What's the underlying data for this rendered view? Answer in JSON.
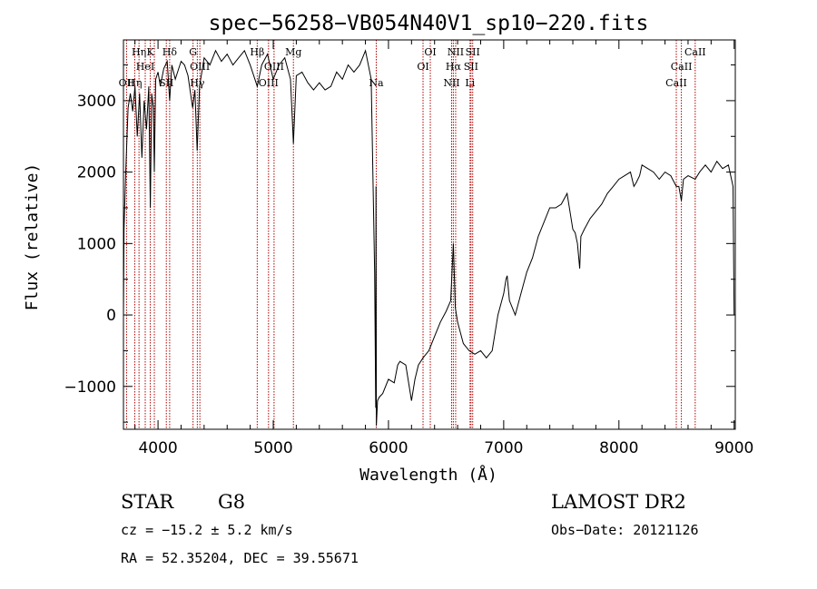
{
  "chart_data": {
    "type": "line",
    "title": "spec−56258−VB054N40V1_sp10−220.fits",
    "xlabel": "Wavelength (Å)",
    "ylabel": "Flux (relative)",
    "xlim": [
      3700,
      9010
    ],
    "ylim": [
      -1600,
      3850
    ],
    "x_ticks": [
      4000,
      5000,
      6000,
      7000,
      8000,
      9000
    ],
    "x_tick_labels": [
      "4000",
      "5000",
      "6000",
      "7000",
      "8000",
      "9000"
    ],
    "y_ticks": [
      -1000,
      0,
      1000,
      2000,
      3000
    ],
    "y_tick_labels": [
      "−1000",
      "0",
      "1000",
      "2000",
      "3000"
    ],
    "grid": false,
    "line_color": "#000000",
    "marker_color": "#b00000",
    "series": [
      {
        "x": [
          3700,
          3705,
          3720,
          3740,
          3760,
          3780,
          3800,
          3820,
          3840,
          3860,
          3880,
          3900,
          3920,
          3933,
          3945,
          3960,
          3968,
          3980,
          4000,
          4020,
          4050,
          4080,
          4101,
          4120,
          4150,
          4180,
          4200,
          4230,
          4260,
          4300,
          4320,
          4340,
          4360,
          4400,
          4450,
          4500,
          4550,
          4600,
          4650,
          4700,
          4750,
          4800,
          4861,
          4900,
          4950,
          5000,
          5050,
          5100,
          5150,
          5175,
          5200,
          5250,
          5300,
          5350,
          5400,
          5450,
          5500,
          5550,
          5600,
          5650,
          5700,
          5750,
          5800,
          5850,
          5880,
          5889,
          5892,
          5895,
          5905,
          5920,
          5950,
          6000,
          6050,
          6080,
          6100,
          6150,
          6200,
          6230,
          6260,
          6300,
          6350,
          6400,
          6450,
          6500,
          6540,
          6563,
          6580,
          6600,
          6650,
          6700,
          6750,
          6800,
          6850,
          6900,
          6950,
          7000,
          7020,
          7030,
          7050,
          7100,
          7150,
          7200,
          7250,
          7300,
          7350,
          7400,
          7450,
          7500,
          7550,
          7580,
          7600,
          7620,
          7640,
          7660,
          7670,
          7700,
          7750,
          7800,
          7850,
          7900,
          7950,
          8000,
          8050,
          8100,
          8130,
          8150,
          8180,
          8200,
          8250,
          8300,
          8350,
          8400,
          8450,
          8498,
          8520,
          8542,
          8560,
          8600,
          8662,
          8700,
          8750,
          8800,
          8850,
          8900,
          8950,
          8990,
          9000
        ],
        "y": [
          0,
          1200,
          2000,
          2900,
          3100,
          2850,
          3200,
          2500,
          3100,
          2200,
          3000,
          2600,
          3200,
          1500,
          3100,
          2900,
          2000,
          3300,
          3400,
          3200,
          3450,
          3550,
          3000,
          3500,
          3300,
          3450,
          3550,
          3500,
          3350,
          2900,
          3150,
          2300,
          3200,
          3600,
          3500,
          3700,
          3550,
          3650,
          3500,
          3600,
          3700,
          3500,
          3200,
          3500,
          3650,
          3300,
          3500,
          3600,
          3300,
          2400,
          3350,
          3400,
          3250,
          3150,
          3250,
          3150,
          3200,
          3400,
          3300,
          3500,
          3400,
          3500,
          3700,
          3300,
          600,
          -1300,
          1800,
          -1550,
          -1200,
          -1150,
          -1100,
          -900,
          -950,
          -700,
          -650,
          -700,
          -1200,
          -900,
          -700,
          -600,
          -500,
          -300,
          -100,
          50,
          200,
          1000,
          100,
          -100,
          -400,
          -500,
          -550,
          -500,
          -600,
          -500,
          0,
          300,
          500,
          550,
          200,
          0,
          300,
          600,
          800,
          1100,
          1300,
          1500,
          1500,
          1550,
          1700,
          1400,
          1200,
          1150,
          1000,
          650,
          1100,
          1200,
          1350,
          1450,
          1550,
          1700,
          1800,
          1900,
          1950,
          2000,
          1800,
          1850,
          1950,
          2100,
          2050,
          2000,
          1900,
          2000,
          1950,
          1800,
          1800,
          1600,
          1900,
          1950,
          1900,
          2000,
          2100,
          2000,
          2150,
          2050,
          2100,
          1800,
          0
        ]
      }
    ],
    "line_markers": [
      {
        "wavelength": 3727,
        "label": "OII",
        "row": 3
      },
      {
        "wavelength": 3798,
        "label": "Hη",
        "row": 3
      },
      {
        "wavelength": 3835,
        "label": "Hη",
        "row": 1
      },
      {
        "wavelength": 3889,
        "label": "HeI",
        "row": 2
      },
      {
        "wavelength": 3933,
        "label": "K",
        "row": 1
      },
      {
        "wavelength": 3968,
        "label": "",
        "row": 1
      },
      {
        "wavelength": 4072,
        "label": "SII",
        "row": 3
      },
      {
        "wavelength": 4101,
        "label": "Hδ",
        "row": 1
      },
      {
        "wavelength": 4304,
        "label": "G",
        "row": 1
      },
      {
        "wavelength": 4341,
        "label": "Hγ",
        "row": 3
      },
      {
        "wavelength": 4363,
        "label": "OIII",
        "row": 2
      },
      {
        "wavelength": 4861,
        "label": "Hβ",
        "row": 1
      },
      {
        "wavelength": 4959,
        "label": "OIII",
        "row": 3
      },
      {
        "wavelength": 5007,
        "label": "OIII",
        "row": 2
      },
      {
        "wavelength": 5175,
        "label": "Mg",
        "row": 1
      },
      {
        "wavelength": 5894,
        "label": "Na",
        "row": 3
      },
      {
        "wavelength": 6300,
        "label": "OI",
        "row": 2
      },
      {
        "wavelength": 6363,
        "label": "OI",
        "row": 1
      },
      {
        "wavelength": 6548,
        "label": "NII",
        "row": 3
      },
      {
        "wavelength": 6563,
        "label": "Hα",
        "row": 2
      },
      {
        "wavelength": 6583,
        "label": "NII",
        "row": 1
      },
      {
        "wavelength": 6708,
        "label": "Li",
        "row": 3
      },
      {
        "wavelength": 6716,
        "label": "SII",
        "row": 2
      },
      {
        "wavelength": 6731,
        "label": "SII",
        "row": 1
      },
      {
        "wavelength": 8498,
        "label": "CaII",
        "row": 3
      },
      {
        "wavelength": 8542,
        "label": "CaII",
        "row": 2
      },
      {
        "wavelength": 8662,
        "label": "CaII",
        "row": 1
      }
    ]
  },
  "info": {
    "object_class": "STAR",
    "subclass": "G8",
    "survey": "LAMOST DR2",
    "redshift_text": "cz = −15.2 ± 5.2 km/s",
    "obs_date_text": "Obs−Date: 20121126",
    "coords_text": "RA =  52.35204, DEC =  39.55671"
  }
}
